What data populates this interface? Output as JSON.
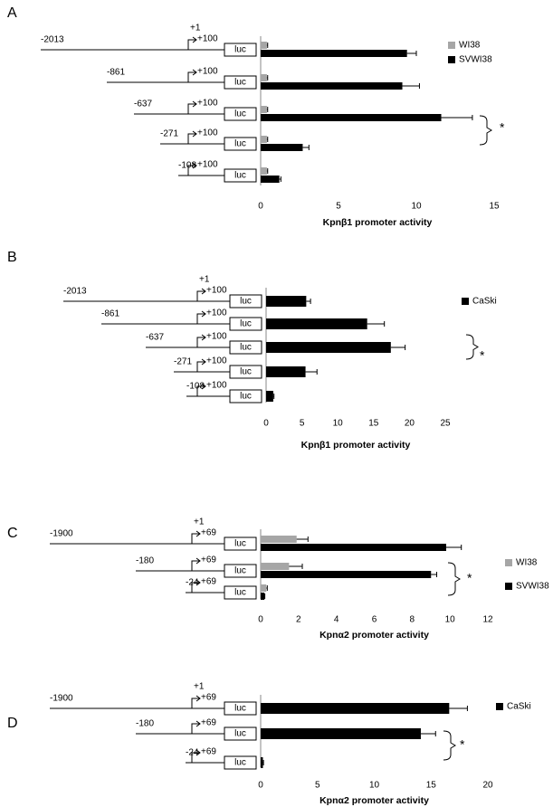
{
  "chart_data": [
    {
      "type": "hbar",
      "panel": "A",
      "xlabel": "Kpnβ1 promoter activity",
      "xlim": [
        0,
        15
      ],
      "xticks": [
        0,
        5,
        10,
        15
      ],
      "categories": [
        "-2013",
        "-861",
        "-637",
        "-271",
        "-108"
      ],
      "tss_label": "+1",
      "end_label": "+100",
      "reporter_label": "luc",
      "series": [
        {
          "name": "WI38",
          "color": "#a6a6a6",
          "values": [
            0.4,
            0.4,
            0.4,
            0.4,
            0.4
          ],
          "errors": [
            0.05,
            0.05,
            0.05,
            0.05,
            0.05
          ]
        },
        {
          "name": "SVWI38",
          "color": "#000000",
          "values": [
            9.4,
            9.1,
            11.6,
            2.7,
            1.2
          ],
          "errors": [
            0.6,
            1.1,
            2.0,
            0.4,
            0.1
          ]
        }
      ],
      "significance_label": "*"
    },
    {
      "type": "hbar",
      "panel": "B",
      "xlabel": "Kpnβ1 promoter activity",
      "xlim": [
        0,
        25
      ],
      "xticks": [
        0,
        5,
        10,
        15,
        20,
        25
      ],
      "categories": [
        "-2013",
        "-861",
        "-637",
        "-271",
        "-108"
      ],
      "tss_label": "+1",
      "end_label": "+100",
      "reporter_label": "luc",
      "series": [
        {
          "name": "CaSki",
          "color": "#000000",
          "values": [
            5.6,
            14.1,
            17.4,
            5.5,
            1.0
          ],
          "errors": [
            0.6,
            2.4,
            2.0,
            1.6,
            0.1
          ]
        }
      ],
      "significance_label": "*"
    },
    {
      "type": "hbar",
      "panel": "C",
      "xlabel": "Kpnα2 promoter activity",
      "xlim": [
        0,
        12
      ],
      "xticks": [
        0,
        2,
        4,
        6,
        8,
        10,
        12
      ],
      "categories": [
        "-1900",
        "-180",
        "-24"
      ],
      "tss_label": "+1",
      "end_label": "+69",
      "reporter_label": "luc",
      "series": [
        {
          "name": "WI38",
          "color": "#a6a6a6",
          "values": [
            1.9,
            1.5,
            0.3
          ],
          "errors": [
            0.6,
            0.7,
            0.05
          ]
        },
        {
          "name": "SVWI38",
          "color": "#000000",
          "values": [
            9.8,
            9.0,
            0.2
          ],
          "errors": [
            0.8,
            0.3,
            0.02
          ]
        }
      ],
      "significance_label": "*"
    },
    {
      "type": "hbar",
      "panel": "D",
      "xlabel": "Kpnα2 promoter activity",
      "xlim": [
        0,
        20
      ],
      "xticks": [
        0,
        5,
        10,
        15,
        20
      ],
      "categories": [
        "-1900",
        "-180",
        "-24"
      ],
      "tss_label": "+1",
      "end_label": "+69",
      "reporter_label": "luc",
      "series": [
        {
          "name": "CaSki",
          "color": "#000000",
          "values": [
            16.6,
            14.1,
            0.2
          ],
          "errors": [
            1.6,
            1.3,
            0.05
          ]
        }
      ],
      "significance_label": "*"
    }
  ]
}
